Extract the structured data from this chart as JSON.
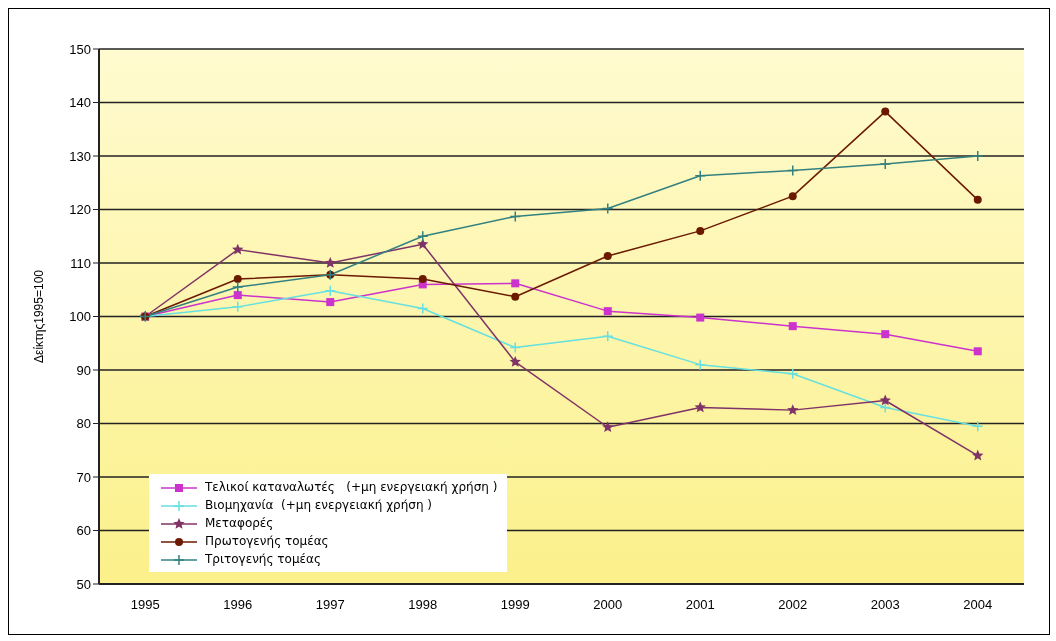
{
  "chart_data": {
    "type": "line",
    "ylabel": "Δείκτης1995=100",
    "categories": [
      "1995",
      "1996",
      "1997",
      "1998",
      "1999",
      "2000",
      "2001",
      "2002",
      "2003",
      "2004"
    ],
    "series": [
      {
        "name": "Τελικοί καταναλωτές   (+μη ενεργειακή χρήση )",
        "color": "#cc33cc",
        "marker": "square",
        "values": [
          100,
          104,
          102.7,
          106,
          106.2,
          101,
          99.8,
          98.2,
          96.7,
          93.5
        ]
      },
      {
        "name": "Βιομηχανία  (+μη ενεργειακή χρήση )",
        "color": "#66e0e0",
        "marker": "cross",
        "values": [
          100,
          101.8,
          104.8,
          101.5,
          94.2,
          96.3,
          91,
          89.3,
          83,
          79.5
        ]
      },
      {
        "name": "Μεταφορές",
        "color": "#803366",
        "marker": "star",
        "values": [
          100,
          112.5,
          110,
          113.5,
          91.5,
          79.3,
          83,
          82.5,
          84.3,
          74
        ]
      },
      {
        "name": "Πρωτογενής τομέας",
        "color": "#6b1a00",
        "marker": "circle",
        "values": [
          100,
          107,
          107.8,
          107,
          103.7,
          111.3,
          116,
          122.5,
          138.3,
          121.8
        ]
      },
      {
        "name": "Τριτογενής τομέας",
        "color": "#338080",
        "marker": "cross",
        "values": [
          100,
          105.5,
          107.8,
          115,
          118.7,
          120.2,
          126.3,
          127.3,
          128.5,
          130
        ]
      }
    ],
    "ylim": [
      50,
      150
    ],
    "yticks": [
      50,
      60,
      70,
      80,
      90,
      100,
      110,
      120,
      130,
      140,
      150
    ],
    "grid": "y",
    "legend": "bottom left",
    "line_style": "solid"
  }
}
